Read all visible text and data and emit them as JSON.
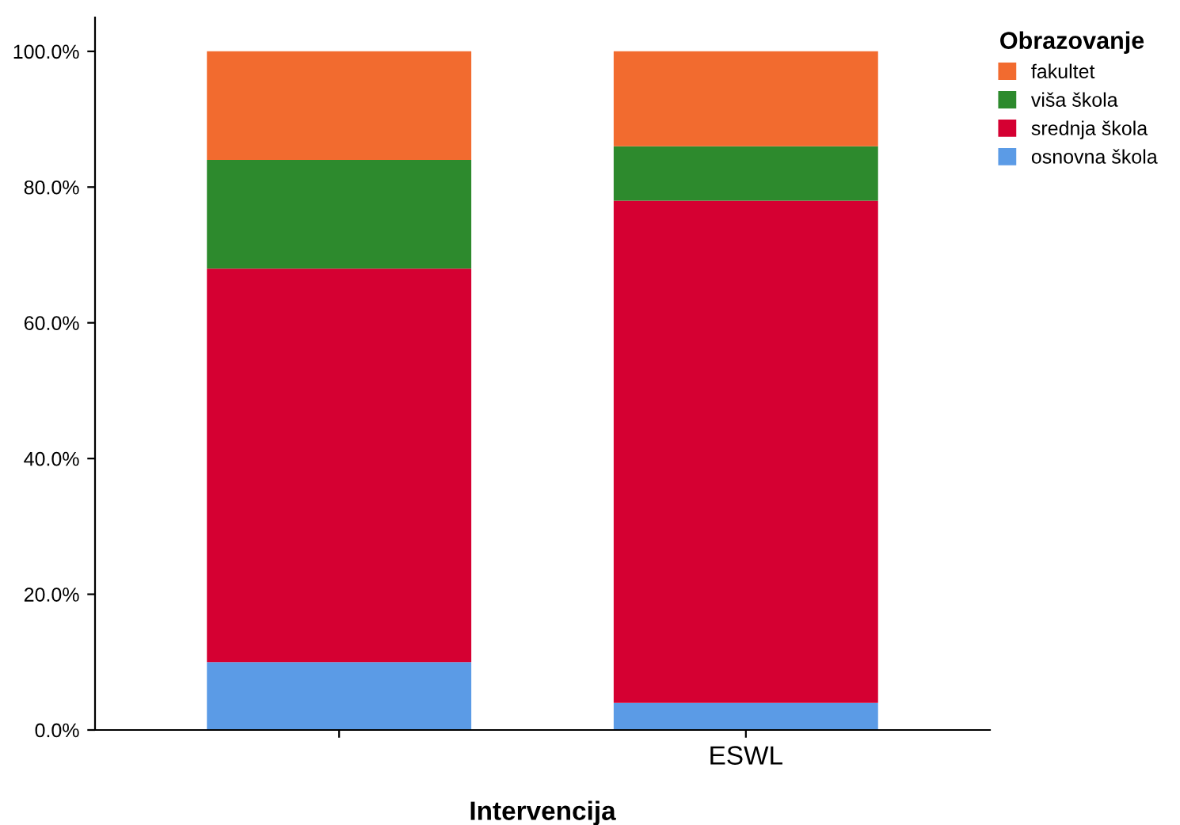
{
  "chart_data": {
    "type": "bar",
    "stacked": true,
    "xlabel": "Intervencija",
    "legend_title": "Obrazovanje",
    "categories": [
      null,
      "ESWL"
    ],
    "series": [
      {
        "name": "osnovna škola",
        "color": "#5b9be6",
        "values": [
          10,
          4
        ]
      },
      {
        "name": "srednja škola",
        "color": "#d50032",
        "values": [
          58,
          74
        ]
      },
      {
        "name": "viša škola",
        "color": "#2d8a2d",
        "values": [
          16,
          8
        ]
      },
      {
        "name": "fakultet",
        "color": "#f26b2f",
        "values": [
          16,
          14
        ]
      }
    ],
    "ylim": [
      0,
      105
    ],
    "yticks": [
      {
        "value": 0,
        "label": "0.0%"
      },
      {
        "value": 20,
        "label": "20.0%"
      },
      {
        "value": 40,
        "label": "40.0%"
      },
      {
        "value": 60,
        "label": "60.0%"
      },
      {
        "value": 80,
        "label": "80.0%"
      },
      {
        "value": 100,
        "label": "100.0%"
      }
    ],
    "grid": false,
    "legend": "top right"
  }
}
